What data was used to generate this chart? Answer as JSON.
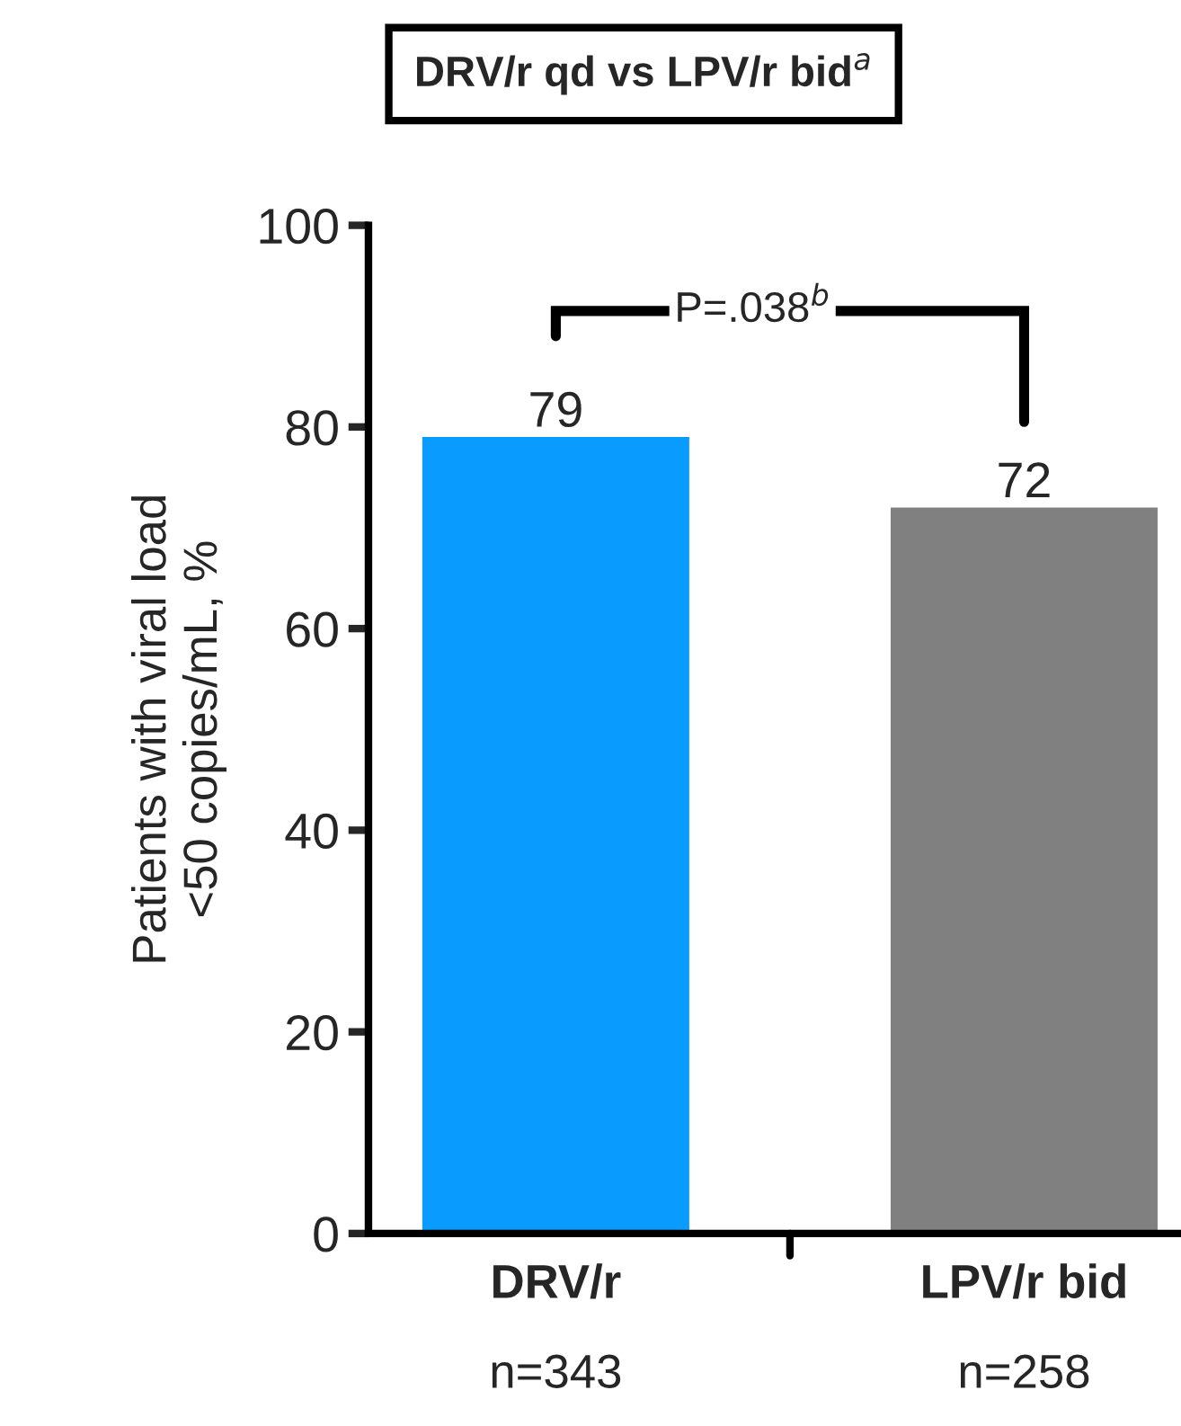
{
  "chart_data": {
    "type": "bar",
    "title": "DRV/r qd vs LPV/r bid$^{a}$",
    "ylabel": "Patients with viral load\n<50 copies/mL, %",
    "categories": [
      "DRV/r\nn=343",
      "LPV/r bid\nn=258"
    ],
    "values": [
      79,
      72
    ],
    "colors": [
      "#0a9bff",
      "#808080"
    ],
    "data_labels": true,
    "ylim": [
      0,
      100
    ],
    "yticks": [
      0,
      20,
      40,
      60,
      80,
      100
    ],
    "grid": false,
    "annotations": [
      "P=.038$^{b}$"
    ]
  }
}
